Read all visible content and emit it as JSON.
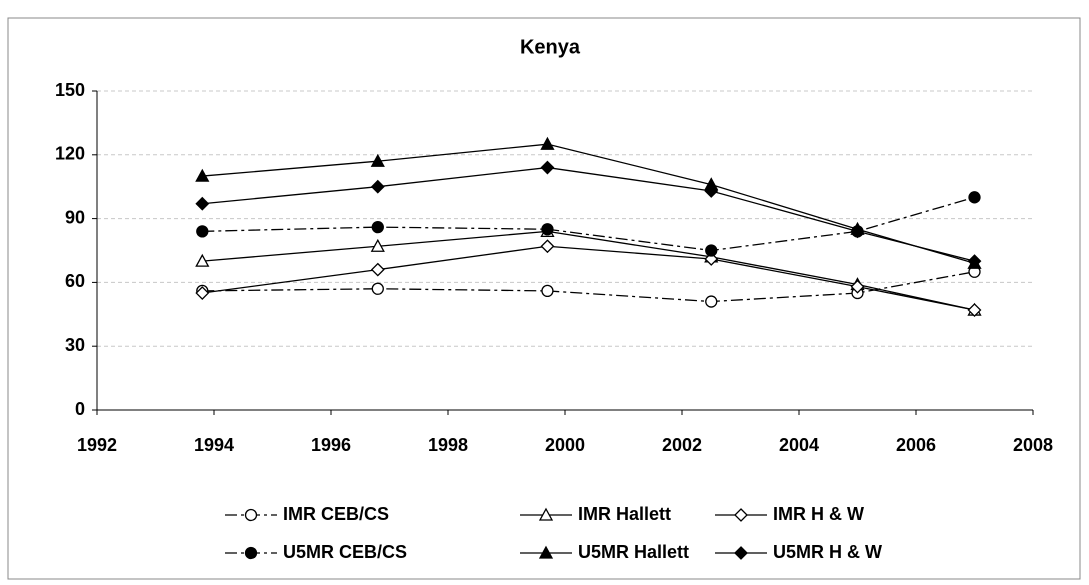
{
  "chart_data": {
    "type": "line",
    "title": "Kenya",
    "x": [
      1993.8,
      1996.8,
      1999.7,
      2002.5,
      2005.0,
      2007.0
    ],
    "series": [
      {
        "name": "IMR CEB/CS",
        "color": "#000000",
        "style": "dashdot",
        "marker": "circle",
        "filled": false,
        "values": [
          56,
          57,
          56,
          51,
          55,
          65
        ]
      },
      {
        "name": "IMR Hallett",
        "color": "#000000",
        "style": "solid",
        "marker": "triangle",
        "filled": false,
        "values": [
          70,
          77,
          84,
          72,
          59,
          47
        ]
      },
      {
        "name": "IMR H & W",
        "color": "#000000",
        "style": "solid",
        "marker": "diamond",
        "filled": false,
        "values": [
          55,
          66,
          77,
          71,
          58,
          47
        ]
      },
      {
        "name": "U5MR CEB/CS",
        "color": "#000000",
        "style": "dashdot",
        "marker": "circle",
        "filled": true,
        "values": [
          84,
          86,
          85,
          75,
          84,
          100
        ]
      },
      {
        "name": "U5MR Hallett",
        "color": "#000000",
        "style": "solid",
        "marker": "triangle",
        "filled": true,
        "values": [
          110,
          117,
          125,
          106,
          85,
          69
        ]
      },
      {
        "name": "U5MR H & W",
        "color": "#000000",
        "style": "solid",
        "marker": "diamond",
        "filled": true,
        "values": [
          97,
          105,
          114,
          103,
          84,
          70
        ]
      }
    ],
    "xlim": [
      1992,
      2008
    ],
    "xticks": [
      1992,
      1994,
      1996,
      1998,
      2000,
      2002,
      2004,
      2006,
      2008
    ],
    "ylim": [
      0,
      150
    ],
    "yticks": [
      0,
      30,
      60,
      90,
      120,
      150
    ],
    "grid": true,
    "legend": "bottom"
  }
}
